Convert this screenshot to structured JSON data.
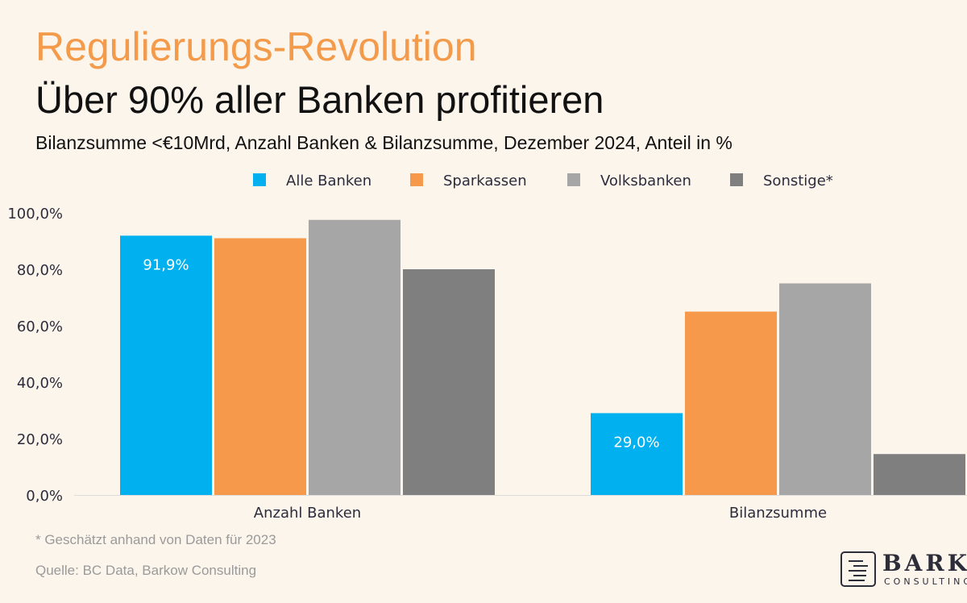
{
  "header": {
    "title": "Regulierungs-Revolution",
    "subtitle": "Über 90% aller Banken profitieren",
    "description": "Bilanzsumme <€10Mrd, Anzahl Banken & Bilanzsumme, Dezember 2024, Anteil in %"
  },
  "chart_data": {
    "type": "bar",
    "categories": [
      "Anzahl Banken",
      "Bilanzsumme"
    ],
    "series": [
      {
        "name": "Alle Banken",
        "values": [
          91.9,
          29.0
        ],
        "color": "#00b0ef",
        "labels": [
          "91,9%",
          "29,0%"
        ]
      },
      {
        "name": "Sparkassen",
        "values": [
          91.0,
          65.0
        ],
        "color": "#f6994b"
      },
      {
        "name": "Volksbanken",
        "values": [
          97.5,
          75.0
        ],
        "color": "#a6a6a6"
      },
      {
        "name": "Sonstige*",
        "values": [
          80.0,
          14.5
        ],
        "color": "#7f7f7f"
      }
    ],
    "yticks": [
      "100,0%",
      "80,0%",
      "60,0%",
      "40,0%",
      "20,0%",
      "0,0%"
    ],
    "ylim": [
      0,
      100
    ],
    "grid": false,
    "legend": "top-center"
  },
  "footer": {
    "footnote": "* Geschätzt anhand von Daten für 2023",
    "source": "Quelle: BC Data, Barkow Consulting"
  },
  "logo": {
    "name": "BARKOW",
    "sub": "CONSULTING"
  }
}
